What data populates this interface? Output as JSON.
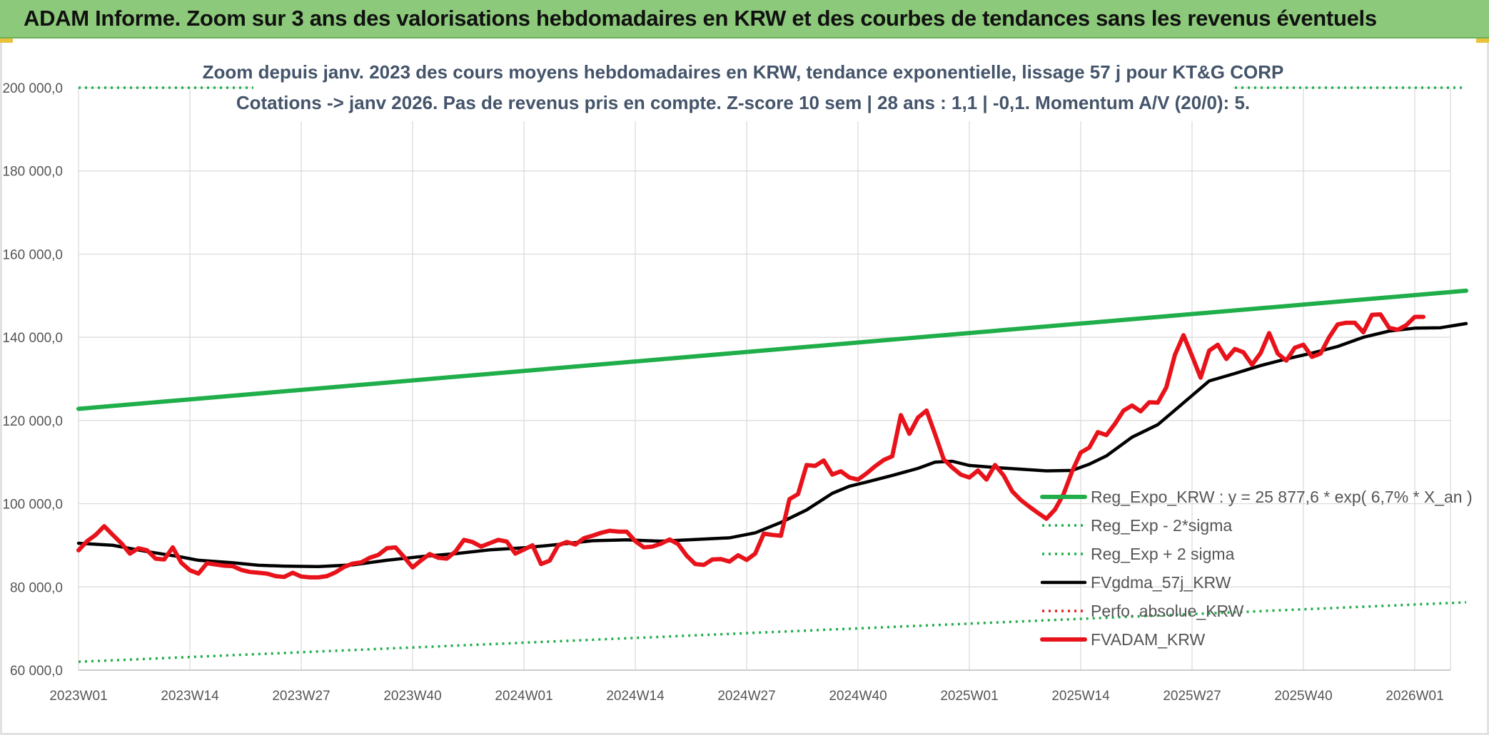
{
  "header": {
    "title": "ADAM Informe. Zoom sur 3 ans des valorisations hebdomadaires en KRW et des courbes de tendances sans les revenus éventuels"
  },
  "chart_data": {
    "type": "line",
    "title": "",
    "subtitle_lines": [
      "Zoom depuis janv. 2023 des cours moyens hebdomadaires en KRW, tendance exponentielle, lissage 57 j pour KT&G CORP",
      "Cotations -> janv 2026. Pas de revenus pris en compte. Z-score 10 sem | 28 ans : 1,1 | -0,1. Momentum A/V (20/0): 5."
    ],
    "xlabel": "",
    "ylabel": "",
    "ylim": [
      60000,
      200000
    ],
    "yticks": [
      60000,
      80000,
      100000,
      120000,
      140000,
      160000,
      180000,
      200000
    ],
    "ytick_labels": [
      "60 000,0",
      "80 000,0",
      "100 000,0",
      "120 000,0",
      "140 000,0",
      "160 000,0",
      "180 000,0",
      "200 000,0"
    ],
    "x_index_range": [
      0,
      162
    ],
    "xticks": [
      0,
      13,
      26,
      39,
      52,
      65,
      78,
      91,
      104,
      117,
      130,
      143,
      156
    ],
    "xtick_labels": [
      "2023W01",
      "2023W14",
      "2023W27",
      "2023W40",
      "2024W01",
      "2024W14",
      "2024W27",
      "2024W40",
      "2025W01",
      "2025W14",
      "2025W27",
      "2025W40",
      "2026W01"
    ],
    "grid": true,
    "legend_position": "right-center",
    "series": [
      {
        "name": "Reg_Expo_KRW : y = 25 877,6 * exp( 6,7% *  X_an )",
        "color": "#1fae4a",
        "style": "solid-thick",
        "points": [
          [
            0,
            122800
          ],
          [
            162,
            151200
          ]
        ]
      },
      {
        "name": "Reg_Exp - 2*sigma",
        "color": "#1fae4a",
        "style": "dotted",
        "points": [
          [
            0,
            62000
          ],
          [
            162,
            76300
          ]
        ]
      },
      {
        "name": "Reg_Exp + 2 sigma",
        "color": "#1fae4a",
        "style": "dotted",
        "points": [
          [
            0,
            200000
          ],
          [
            162,
            200000
          ]
        ]
      },
      {
        "name": "FVgdma_57j_KRW",
        "color": "#000000",
        "style": "solid",
        "points": [
          [
            0,
            90500
          ],
          [
            4,
            90000
          ],
          [
            8,
            88500
          ],
          [
            12,
            87200
          ],
          [
            14,
            86400
          ],
          [
            18,
            85800
          ],
          [
            21,
            85200
          ],
          [
            24,
            85000
          ],
          [
            28,
            84900
          ],
          [
            32,
            85300
          ],
          [
            36,
            86400
          ],
          [
            40,
            87300
          ],
          [
            44,
            88000
          ],
          [
            48,
            88900
          ],
          [
            52,
            89400
          ],
          [
            56,
            90200
          ],
          [
            60,
            91100
          ],
          [
            64,
            91300
          ],
          [
            68,
            91000
          ],
          [
            72,
            91400
          ],
          [
            76,
            91800
          ],
          [
            79,
            93000
          ],
          [
            82,
            95500
          ],
          [
            85,
            98500
          ],
          [
            88,
            102500
          ],
          [
            90,
            104200
          ],
          [
            92,
            105200
          ],
          [
            95,
            106800
          ],
          [
            98,
            108500
          ],
          [
            100,
            110000
          ],
          [
            102,
            110200
          ],
          [
            104,
            109200
          ],
          [
            107,
            108700
          ],
          [
            110,
            108300
          ],
          [
            113,
            107900
          ],
          [
            116,
            108000
          ],
          [
            118,
            109500
          ],
          [
            120,
            111500
          ],
          [
            123,
            116000
          ],
          [
            126,
            119000
          ],
          [
            128,
            122500
          ],
          [
            130,
            126000
          ],
          [
            132,
            129500
          ],
          [
            135,
            131300
          ],
          [
            138,
            133200
          ],
          [
            141,
            134800
          ],
          [
            144,
            136200
          ],
          [
            147,
            137800
          ],
          [
            150,
            140000
          ],
          [
            153,
            141500
          ],
          [
            156,
            142200
          ],
          [
            159,
            142300
          ],
          [
            162,
            143300
          ]
        ]
      },
      {
        "name": "Perfo. absolue_KRW",
        "color": "#e02020",
        "style": "dotted",
        "points": []
      },
      {
        "name": "FVADAM_KRW",
        "color": "#e8121a",
        "style": "solid-thick",
        "points": [
          [
            0,
            88800
          ],
          [
            1,
            91000
          ],
          [
            2,
            92500
          ],
          [
            3,
            94600
          ],
          [
            4,
            92500
          ],
          [
            5,
            90500
          ],
          [
            6,
            88000
          ],
          [
            7,
            89300
          ],
          [
            8,
            88800
          ],
          [
            9,
            86800
          ],
          [
            10,
            86600
          ],
          [
            11,
            89500
          ],
          [
            12,
            85800
          ],
          [
            13,
            84000
          ],
          [
            14,
            83200
          ],
          [
            15,
            85700
          ],
          [
            16,
            85400
          ],
          [
            17,
            85100
          ],
          [
            18,
            85000
          ],
          [
            19,
            84100
          ],
          [
            20,
            83600
          ],
          [
            21,
            83400
          ],
          [
            22,
            83200
          ],
          [
            23,
            82600
          ],
          [
            24,
            82400
          ],
          [
            25,
            83400
          ],
          [
            26,
            82500
          ],
          [
            27,
            82300
          ],
          [
            28,
            82300
          ],
          [
            29,
            82600
          ],
          [
            30,
            83500
          ],
          [
            31,
            84800
          ],
          [
            32,
            85600
          ],
          [
            33,
            85900
          ],
          [
            34,
            87000
          ],
          [
            35,
            87700
          ],
          [
            36,
            89300
          ],
          [
            37,
            89500
          ],
          [
            38,
            87200
          ],
          [
            39,
            84700
          ],
          [
            40,
            86400
          ],
          [
            41,
            87900
          ],
          [
            42,
            87000
          ],
          [
            43,
            86800
          ],
          [
            44,
            88500
          ],
          [
            45,
            91300
          ],
          [
            46,
            90800
          ],
          [
            47,
            89700
          ],
          [
            48,
            90500
          ],
          [
            49,
            91300
          ],
          [
            50,
            90900
          ],
          [
            51,
            88000
          ],
          [
            52,
            89000
          ],
          [
            53,
            90000
          ],
          [
            54,
            85500
          ],
          [
            55,
            86300
          ],
          [
            56,
            90000
          ],
          [
            57,
            90800
          ],
          [
            58,
            90200
          ],
          [
            59,
            91700
          ],
          [
            60,
            92300
          ],
          [
            61,
            93000
          ],
          [
            62,
            93500
          ],
          [
            63,
            93300
          ],
          [
            64,
            93300
          ],
          [
            65,
            91000
          ],
          [
            66,
            89500
          ],
          [
            67,
            89700
          ],
          [
            68,
            90400
          ],
          [
            69,
            91400
          ],
          [
            70,
            90300
          ],
          [
            71,
            87500
          ],
          [
            72,
            85500
          ],
          [
            73,
            85300
          ],
          [
            74,
            86600
          ],
          [
            75,
            86700
          ],
          [
            76,
            86100
          ],
          [
            77,
            87600
          ],
          [
            78,
            86500
          ],
          [
            79,
            88000
          ],
          [
            80,
            92800
          ],
          [
            81,
            92500
          ],
          [
            82,
            92300
          ],
          [
            83,
            101100
          ],
          [
            84,
            102300
          ],
          [
            85,
            109300
          ],
          [
            86,
            109100
          ],
          [
            87,
            110400
          ],
          [
            88,
            107000
          ],
          [
            89,
            107800
          ],
          [
            90,
            106300
          ],
          [
            91,
            105800
          ],
          [
            92,
            107300
          ],
          [
            93,
            109000
          ],
          [
            94,
            110500
          ],
          [
            95,
            111400
          ],
          [
            96,
            121300
          ],
          [
            97,
            116800
          ],
          [
            98,
            120700
          ],
          [
            99,
            122400
          ],
          [
            100,
            116700
          ],
          [
            101,
            110700
          ],
          [
            102,
            108700
          ],
          [
            103,
            107000
          ],
          [
            104,
            106300
          ],
          [
            105,
            108000
          ],
          [
            106,
            105800
          ],
          [
            107,
            109300
          ],
          [
            108,
            106800
          ],
          [
            109,
            103000
          ],
          [
            110,
            100900
          ],
          [
            111,
            99300
          ],
          [
            112,
            97800
          ],
          [
            113,
            96400
          ],
          [
            114,
            98600
          ],
          [
            115,
            102300
          ],
          [
            116,
            107800
          ],
          [
            117,
            112300
          ],
          [
            118,
            113500
          ],
          [
            119,
            117200
          ],
          [
            120,
            116500
          ],
          [
            121,
            119200
          ],
          [
            122,
            122400
          ],
          [
            123,
            123600
          ],
          [
            124,
            122200
          ],
          [
            125,
            124400
          ],
          [
            126,
            124300
          ],
          [
            127,
            128000
          ],
          [
            128,
            135800
          ],
          [
            129,
            140500
          ],
          [
            130,
            135500
          ],
          [
            131,
            130300
          ],
          [
            132,
            136800
          ],
          [
            133,
            138200
          ],
          [
            134,
            134800
          ],
          [
            135,
            137200
          ],
          [
            136,
            136400
          ],
          [
            137,
            133400
          ],
          [
            138,
            136200
          ],
          [
            139,
            141000
          ],
          [
            140,
            136100
          ],
          [
            141,
            134400
          ],
          [
            142,
            137500
          ],
          [
            143,
            138200
          ],
          [
            144,
            135300
          ],
          [
            145,
            136100
          ],
          [
            146,
            140000
          ],
          [
            147,
            143100
          ],
          [
            148,
            143500
          ],
          [
            149,
            143500
          ],
          [
            150,
            141200
          ],
          [
            151,
            145400
          ],
          [
            152,
            145500
          ],
          [
            153,
            142300
          ],
          [
            154,
            141800
          ],
          [
            155,
            142900
          ],
          [
            156,
            144900
          ],
          [
            157,
            144900
          ]
        ]
      }
    ]
  }
}
